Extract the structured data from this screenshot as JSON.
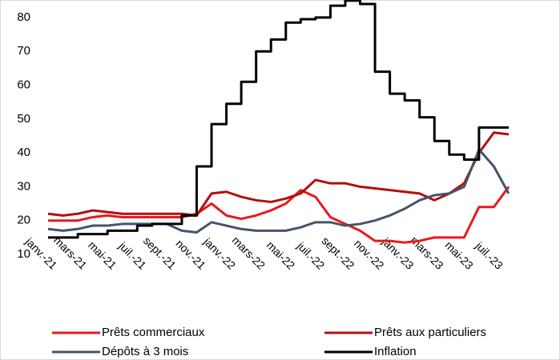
{
  "chart_data": {
    "type": "line",
    "categories": [
      "janv.-21",
      null,
      "mars-21",
      null,
      "mai-21",
      null,
      "juil.-21",
      null,
      "sept.-21",
      null,
      "nov.-21",
      null,
      "janv.-22",
      null,
      "mars-22",
      null,
      "mai-22",
      null,
      "juil.-22",
      null,
      "sept.-22",
      null,
      "nov.-22",
      null,
      "janv.-23",
      null,
      "mars-23",
      null,
      "mai-23",
      null,
      "juil.-23",
      null
    ],
    "series": [
      {
        "name": "Prêts commerciaux",
        "color": "#e8191d",
        "values": [
          20,
          20,
          20,
          21,
          21.5,
          21,
          21,
          21,
          21,
          21,
          22,
          25,
          21.5,
          20.5,
          21.5,
          23,
          25,
          29,
          27,
          21,
          19,
          17,
          14,
          14,
          13.5,
          14,
          15,
          15,
          15,
          24,
          24,
          30
        ]
      },
      {
        "name": "Prêts aux particuliers",
        "color": "#b01010",
        "values": [
          22,
          21.5,
          22,
          23,
          22.5,
          22,
          22,
          22,
          22,
          22,
          21.5,
          28,
          28.5,
          27,
          26,
          25.5,
          26.5,
          28,
          32,
          31,
          31,
          30,
          29.5,
          29,
          28.5,
          28,
          26,
          28,
          31,
          40,
          46,
          45.5
        ]
      },
      {
        "name": "Dépôts à 3 mois",
        "color": "#44546a",
        "values": [
          17.5,
          17,
          17.5,
          18.5,
          18.5,
          19,
          19,
          19,
          19,
          17,
          16.5,
          19.5,
          18.5,
          17.5,
          17,
          17,
          17,
          18,
          19.5,
          19.5,
          18.5,
          19,
          20,
          21.5,
          23.5,
          26,
          27.5,
          28,
          30,
          41,
          36,
          28
        ]
      },
      {
        "name": "Inflation",
        "color": "#000000",
        "step": true,
        "values": [
          15,
          15,
          16,
          16,
          17,
          17,
          18.5,
          19,
          19,
          21.5,
          36,
          48.5,
          54.5,
          61,
          70,
          73.5,
          78.5,
          79.5,
          80,
          83.5,
          85,
          84,
          64,
          57.5,
          55.5,
          50.5,
          43.5,
          39.5,
          38,
          47.5,
          47.5,
          47.5
        ]
      }
    ],
    "ylim": [
      10,
      85
    ],
    "yticks": [
      10,
      20,
      30,
      40,
      50,
      60,
      70,
      80
    ]
  }
}
